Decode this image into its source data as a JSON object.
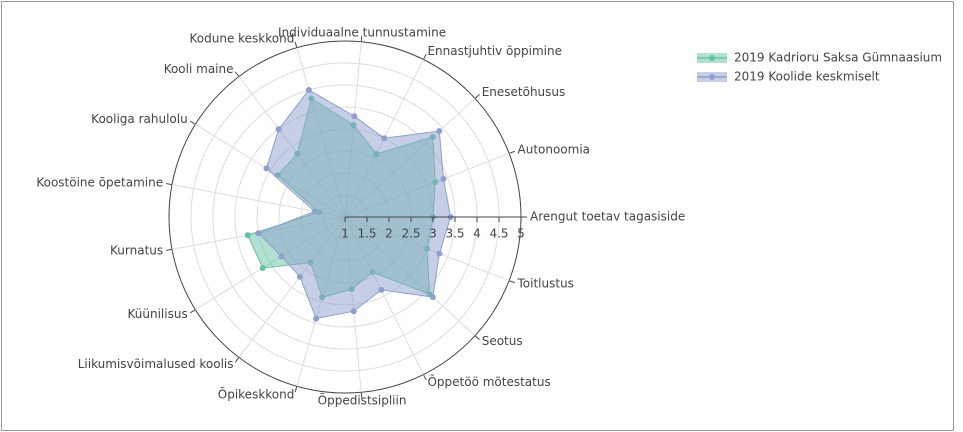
{
  "chart_data": {
    "type": "radar",
    "categories": [
      "Arengut toetav tagasiside",
      "Autonoomia",
      "Enesetõhusus",
      "Ennastjuhtiv õppimine",
      "Individuaalne tunnustamine",
      "Kodune keskkond",
      "Kooli maine",
      "Kooliga rahulolu",
      "Koostöine õpetamine",
      "Kurnatus",
      "Küünilisus",
      "Liikumisvõimalused koolis",
      "Õpikeskkond",
      "Õppedistsipliin",
      "Õppetöö mõtestatus",
      "Seotus",
      "Toitlustus"
    ],
    "series": [
      {
        "name": "2019 Kadrioru Saksa Gümnaasium",
        "color": "#66c2a5",
        "values": [
          3.0,
          3.2,
          3.7,
          2.6,
          3.1,
          3.8,
          2.8,
          2.8,
          1.6,
          3.25,
          3.2,
          2.3,
          2.9,
          2.65,
          2.4,
          3.6,
          3.0
        ]
      },
      {
        "name": "2019 Koolide keskmiselt",
        "color": "#8da0cb",
        "values": [
          3.4,
          3.4,
          3.9,
          3.0,
          3.3,
          4.0,
          3.5,
          3.1,
          1.7,
          3.0,
          2.7,
          2.7,
          3.4,
          3.15,
          2.85,
          3.7,
          3.3
        ]
      }
    ],
    "rlim": [
      1,
      5
    ],
    "rticks": [
      1,
      1.5,
      2,
      2.5,
      3,
      3.5,
      4,
      4.5,
      5
    ],
    "grid": true,
    "legend": "top-right"
  }
}
